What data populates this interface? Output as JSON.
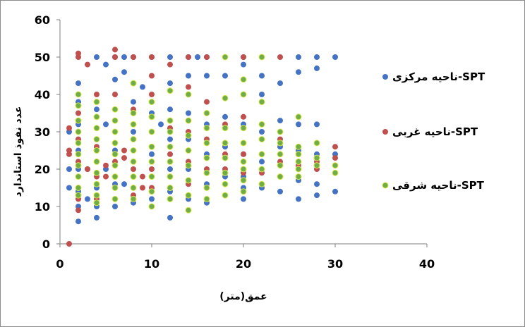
{
  "chart_data": {
    "type": "scatter",
    "title": "",
    "xlabel": "عمق(متر)",
    "ylabel": "عدد نفوذ استاندارد",
    "xlim": [
      0,
      40
    ],
    "ylim": [
      0,
      60
    ],
    "xticks": [
      0,
      10,
      20,
      30,
      40
    ],
    "yticks": [
      0,
      10,
      20,
      30,
      40,
      50,
      60
    ],
    "grid": false,
    "legend_position": "right",
    "series": [
      {
        "name": "ناحیه مرکزی-SPT",
        "color": "#4472C4",
        "points": [
          [
            1,
            30
          ],
          [
            1,
            20
          ],
          [
            1,
            15
          ],
          [
            2,
            43
          ],
          [
            2,
            38
          ],
          [
            2,
            32
          ],
          [
            2,
            25
          ],
          [
            2,
            20
          ],
          [
            2,
            14
          ],
          [
            2,
            10
          ],
          [
            2,
            6
          ],
          [
            3,
            12
          ],
          [
            3,
            20
          ],
          [
            4,
            50
          ],
          [
            4,
            36
          ],
          [
            4,
            28
          ],
          [
            4,
            22
          ],
          [
            4,
            15
          ],
          [
            4,
            10
          ],
          [
            4,
            7
          ],
          [
            5,
            48
          ],
          [
            5,
            32
          ],
          [
            5,
            20
          ],
          [
            6,
            50
          ],
          [
            6,
            44
          ],
          [
            6,
            36
          ],
          [
            6,
            25
          ],
          [
            6,
            16
          ],
          [
            6,
            10
          ],
          [
            7,
            50
          ],
          [
            7,
            46
          ],
          [
            7,
            16
          ],
          [
            8,
            50
          ],
          [
            8,
            38
          ],
          [
            8,
            30
          ],
          [
            8,
            22
          ],
          [
            8,
            15
          ],
          [
            8,
            11
          ],
          [
            9,
            42
          ],
          [
            10,
            50
          ],
          [
            10,
            35
          ],
          [
            10,
            30
          ],
          [
            10,
            24
          ],
          [
            10,
            18
          ],
          [
            10,
            12
          ],
          [
            11,
            32
          ],
          [
            12,
            50
          ],
          [
            12,
            43
          ],
          [
            12,
            36
          ],
          [
            12,
            28
          ],
          [
            12,
            20
          ],
          [
            12,
            14
          ],
          [
            12,
            7
          ],
          [
            14,
            50
          ],
          [
            14,
            45
          ],
          [
            14,
            35
          ],
          [
            14,
            28
          ],
          [
            14,
            20
          ],
          [
            14,
            12
          ],
          [
            15,
            50
          ],
          [
            16,
            50
          ],
          [
            16,
            45
          ],
          [
            16,
            32
          ],
          [
            16,
            24
          ],
          [
            16,
            16
          ],
          [
            16,
            11
          ],
          [
            18,
            50
          ],
          [
            18,
            45
          ],
          [
            18,
            34
          ],
          [
            18,
            26
          ],
          [
            18,
            18
          ],
          [
            18,
            13
          ],
          [
            20,
            50
          ],
          [
            20,
            48
          ],
          [
            20,
            40
          ],
          [
            20,
            32
          ],
          [
            20,
            24
          ],
          [
            20,
            18
          ],
          [
            20,
            15
          ],
          [
            20,
            12
          ],
          [
            22,
            45
          ],
          [
            22,
            40
          ],
          [
            22,
            30
          ],
          [
            22,
            22
          ],
          [
            22,
            15
          ],
          [
            24,
            43
          ],
          [
            24,
            33
          ],
          [
            24,
            26
          ],
          [
            24,
            18
          ],
          [
            24,
            14
          ],
          [
            26,
            50
          ],
          [
            26,
            46
          ],
          [
            26,
            32
          ],
          [
            26,
            25
          ],
          [
            26,
            17
          ],
          [
            26,
            12
          ],
          [
            28,
            50
          ],
          [
            28,
            47
          ],
          [
            28,
            32
          ],
          [
            28,
            24
          ],
          [
            28,
            16
          ],
          [
            28,
            13
          ],
          [
            30,
            50
          ],
          [
            30,
            24
          ],
          [
            30,
            14
          ]
        ]
      },
      {
        "name": "ناحیه غربی-SPT",
        "color": "#C0504D",
        "points": [
          [
            1,
            31
          ],
          [
            1,
            25
          ],
          [
            1,
            24
          ],
          [
            1,
            0
          ],
          [
            2,
            51
          ],
          [
            2,
            50
          ],
          [
            2,
            35
          ],
          [
            2,
            28
          ],
          [
            2,
            22
          ],
          [
            2,
            12
          ],
          [
            2,
            9
          ],
          [
            3,
            48
          ],
          [
            3,
            20
          ],
          [
            4,
            40
          ],
          [
            4,
            34
          ],
          [
            4,
            26
          ],
          [
            4,
            18
          ],
          [
            4,
            12
          ],
          [
            5,
            21
          ],
          [
            5,
            18
          ],
          [
            6,
            52
          ],
          [
            6,
            50
          ],
          [
            6,
            40
          ],
          [
            6,
            30
          ],
          [
            6,
            22
          ],
          [
            6,
            15
          ],
          [
            7,
            25
          ],
          [
            7,
            23
          ],
          [
            8,
            50
          ],
          [
            8,
            36
          ],
          [
            8,
            28
          ],
          [
            8,
            20
          ],
          [
            8,
            13
          ],
          [
            9,
            18
          ],
          [
            9,
            15
          ],
          [
            10,
            50
          ],
          [
            10,
            45
          ],
          [
            10,
            40
          ],
          [
            10,
            30
          ],
          [
            10,
            20
          ],
          [
            10,
            15
          ],
          [
            12,
            48
          ],
          [
            12,
            31
          ],
          [
            12,
            24
          ],
          [
            12,
            18
          ],
          [
            14,
            50
          ],
          [
            14,
            42
          ],
          [
            14,
            30
          ],
          [
            14,
            22
          ],
          [
            14,
            16
          ],
          [
            16,
            50
          ],
          [
            16,
            38
          ],
          [
            16,
            28
          ],
          [
            16,
            20
          ],
          [
            16,
            15
          ],
          [
            18,
            32
          ],
          [
            18,
            24
          ],
          [
            18,
            20
          ],
          [
            20,
            50
          ],
          [
            20,
            34
          ],
          [
            20,
            24
          ],
          [
            20,
            19
          ],
          [
            22,
            19
          ],
          [
            22,
            24
          ],
          [
            24,
            50
          ],
          [
            24,
            28
          ],
          [
            24,
            22
          ],
          [
            26,
            21
          ],
          [
            26,
            20
          ],
          [
            28,
            22
          ],
          [
            28,
            20
          ],
          [
            30,
            26
          ],
          [
            30,
            23
          ]
        ]
      },
      {
        "name": "ناحیه شرقی-SPT",
        "color": "#70AD47",
        "points": [
          [
            2,
            40
          ],
          [
            2,
            37
          ],
          [
            2,
            33
          ],
          [
            2,
            30
          ],
          [
            2,
            27
          ],
          [
            2,
            24
          ],
          [
            2,
            21
          ],
          [
            2,
            18
          ],
          [
            2,
            15
          ],
          [
            2,
            13
          ],
          [
            4,
            38
          ],
          [
            4,
            34
          ],
          [
            4,
            31
          ],
          [
            4,
            28
          ],
          [
            4,
            25
          ],
          [
            4,
            22
          ],
          [
            4,
            19
          ],
          [
            4,
            16
          ],
          [
            4,
            13
          ],
          [
            4,
            11
          ],
          [
            6,
            36
          ],
          [
            6,
            33
          ],
          [
            6,
            30
          ],
          [
            6,
            27
          ],
          [
            6,
            24
          ],
          [
            6,
            21
          ],
          [
            6,
            18
          ],
          [
            6,
            15
          ],
          [
            6,
            12
          ],
          [
            8,
            43
          ],
          [
            8,
            35
          ],
          [
            8,
            32
          ],
          [
            8,
            28
          ],
          [
            8,
            25
          ],
          [
            8,
            22
          ],
          [
            8,
            18
          ],
          [
            8,
            15
          ],
          [
            8,
            12
          ],
          [
            10,
            38
          ],
          [
            10,
            34
          ],
          [
            10,
            30
          ],
          [
            10,
            26
          ],
          [
            10,
            22
          ],
          [
            10,
            18
          ],
          [
            10,
            14
          ],
          [
            10,
            10
          ],
          [
            12,
            41
          ],
          [
            12,
            33
          ],
          [
            12,
            30
          ],
          [
            12,
            26
          ],
          [
            12,
            22
          ],
          [
            12,
            18
          ],
          [
            12,
            15
          ],
          [
            12,
            12
          ],
          [
            14,
            40
          ],
          [
            14,
            33
          ],
          [
            14,
            29
          ],
          [
            14,
            25
          ],
          [
            14,
            21
          ],
          [
            14,
            17
          ],
          [
            14,
            13
          ],
          [
            14,
            9
          ],
          [
            16,
            35
          ],
          [
            16,
            31
          ],
          [
            16,
            27
          ],
          [
            16,
            23
          ],
          [
            16,
            19
          ],
          [
            16,
            15
          ],
          [
            16,
            12
          ],
          [
            18,
            50
          ],
          [
            18,
            39
          ],
          [
            18,
            31
          ],
          [
            18,
            27
          ],
          [
            18,
            23
          ],
          [
            18,
            19
          ],
          [
            18,
            16
          ],
          [
            18,
            13
          ],
          [
            20,
            44
          ],
          [
            20,
            40
          ],
          [
            20,
            31
          ],
          [
            20,
            27
          ],
          [
            20,
            22
          ],
          [
            20,
            20
          ],
          [
            20,
            17
          ],
          [
            20,
            14
          ],
          [
            22,
            50
          ],
          [
            22,
            38
          ],
          [
            22,
            32
          ],
          [
            22,
            28
          ],
          [
            22,
            24
          ],
          [
            22,
            20
          ],
          [
            22,
            16
          ],
          [
            24,
            30
          ],
          [
            24,
            27
          ],
          [
            24,
            24
          ],
          [
            24,
            21
          ],
          [
            24,
            18
          ],
          [
            26,
            34
          ],
          [
            26,
            26
          ],
          [
            26,
            24
          ],
          [
            26,
            22
          ],
          [
            26,
            20
          ],
          [
            26,
            18
          ],
          [
            28,
            27
          ],
          [
            28,
            23
          ],
          [
            28,
            21
          ],
          [
            30,
            21
          ],
          [
            30,
            19
          ]
        ]
      }
    ]
  }
}
